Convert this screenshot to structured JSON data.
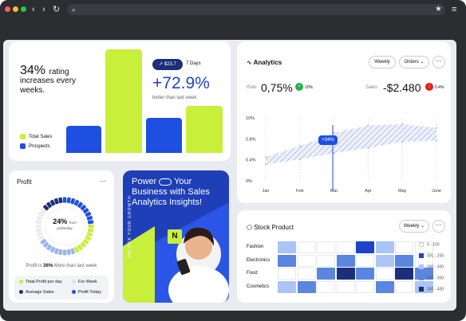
{
  "browser": {
    "url": ""
  },
  "rating_card": {
    "pct": "34%",
    "pct_suffix": "rating",
    "text": "increases every weeks.",
    "legend": [
      {
        "label": "Total Sales",
        "color": "#c8ef3a"
      },
      {
        "label": "Prospects",
        "color": "#1f4fe0"
      }
    ],
    "amount_pill": "↗ $23.7",
    "period": "7 Days",
    "growth": "+72.9%",
    "growth_caption": "better than last week"
  },
  "analytics": {
    "title": "Analytics",
    "buttons": {
      "weekly": "Weekly",
      "orders": "Orders",
      "more": "···"
    },
    "rate": {
      "label": "Rate",
      "value": "0,75%",
      "change": "10%"
    },
    "sales": {
      "label": "Sales",
      "value": "-$2.480",
      "change": "0.4%"
    },
    "tooltip": "+34%"
  },
  "chart_data": {
    "type": "area",
    "x": [
      "Jan",
      "Feb",
      "Mar",
      "Apr",
      "May",
      "June"
    ],
    "yticks": [
      "10%",
      "0.8%",
      "0.4%",
      "0%"
    ],
    "ylim": [
      0,
      10
    ],
    "series": [
      {
        "values": [
          3.8,
          5.5,
          7.6,
          8.8,
          9.0,
          8.4
        ]
      },
      {
        "values": [
          2.6,
          3.4,
          4.4,
          5.2,
          6.2,
          6.4
        ]
      }
    ]
  },
  "profit": {
    "title": "Profit",
    "more": "···",
    "gauge_pct": "24%",
    "gauge_from": "from",
    "gauge_sub": "yesterday",
    "gauge_fraction": 0.24,
    "summary_prefix": "Profit is",
    "summary_pct": "36%",
    "summary_suffix": "More than last week",
    "legend": [
      {
        "label": "Total Profit per day",
        "color": "#c8ef3a"
      },
      {
        "label": "For Week",
        "color": "#ececec"
      },
      {
        "label": "Average Sales",
        "color": "#1b2f7a"
      },
      {
        "label": "Profit Today",
        "color": "#1f4fe0"
      }
    ]
  },
  "promo": {
    "headline": "Power [icon] Your Business with Sales Analytics Insights!",
    "line1": "Power",
    "line1b": "Your",
    "line2": "Business with Sales",
    "line3": "Analytics Insights!",
    "vertical": "UNLOCK YOUR GROWTH",
    "logo": "N"
  },
  "stock": {
    "title": "Stock Product",
    "weekly": "Weekly",
    "more": "···",
    "rows": [
      "Fashion",
      "Electronics",
      "Food",
      "Cosmetics"
    ],
    "legend": [
      {
        "label": "0 - 100",
        "color": "#ffffff"
      },
      {
        "label": "101 - 200",
        "color": "#1f43c8"
      },
      {
        "label": "200 - 300",
        "color": "#aac4f5"
      },
      {
        "label": "200 - 300",
        "color": "#5b86e0"
      },
      {
        "label": "300 - 400",
        "color": "#1b2f7a"
      }
    ],
    "grid": [
      [
        2,
        0,
        0,
        0,
        1,
        2,
        0,
        0
      ],
      [
        3,
        0,
        0,
        3,
        0,
        2,
        3,
        0
      ],
      [
        0,
        0,
        3,
        4,
        3,
        0,
        4,
        3
      ],
      [
        2,
        3,
        0,
        0,
        0,
        3,
        0,
        2
      ]
    ]
  }
}
